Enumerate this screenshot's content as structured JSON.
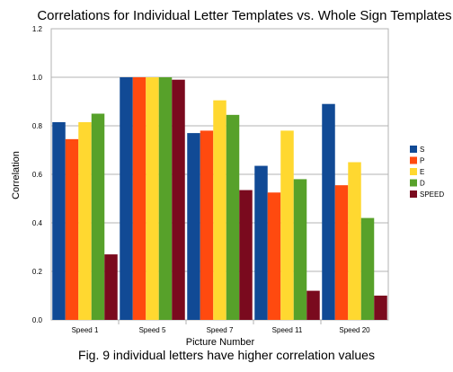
{
  "caption": "Fig. 9 individual letters have higher correlation values",
  "chart_data": {
    "type": "bar",
    "title": "Correlations for Individual Letter Templates vs. Whole Sign Templates",
    "xlabel": "Picture Number",
    "ylabel": "Correlation",
    "ylim": [
      0,
      1.2
    ],
    "yticks": [
      0.0,
      0.2,
      0.4,
      0.6,
      0.8,
      1.0,
      1.2
    ],
    "ytick_labels": [
      "0.0",
      "0.2",
      "0.4",
      "0.6",
      "0.8",
      "1.0",
      "1.2"
    ],
    "grid": "horizontal",
    "legend_position": "right",
    "categories": [
      "Speed 1",
      "Speed 5",
      "Speed 7",
      "Speed 11",
      "Speed 20"
    ],
    "series": [
      {
        "name": "S",
        "color": "#114a95",
        "values": [
          0.815,
          1.0,
          0.77,
          0.635,
          0.89
        ]
      },
      {
        "name": "P",
        "color": "#ff4a0f",
        "values": [
          0.745,
          1.0,
          0.78,
          0.525,
          0.555
        ]
      },
      {
        "name": "E",
        "color": "#ffd830",
        "values": [
          0.815,
          1.0,
          0.905,
          0.78,
          0.65
        ]
      },
      {
        "name": "D",
        "color": "#57a12a",
        "values": [
          0.85,
          1.0,
          0.845,
          0.58,
          0.42
        ]
      },
      {
        "name": "SPEED",
        "color": "#7a0a1e",
        "values": [
          0.27,
          0.99,
          0.535,
          0.12,
          0.1
        ]
      }
    ]
  }
}
